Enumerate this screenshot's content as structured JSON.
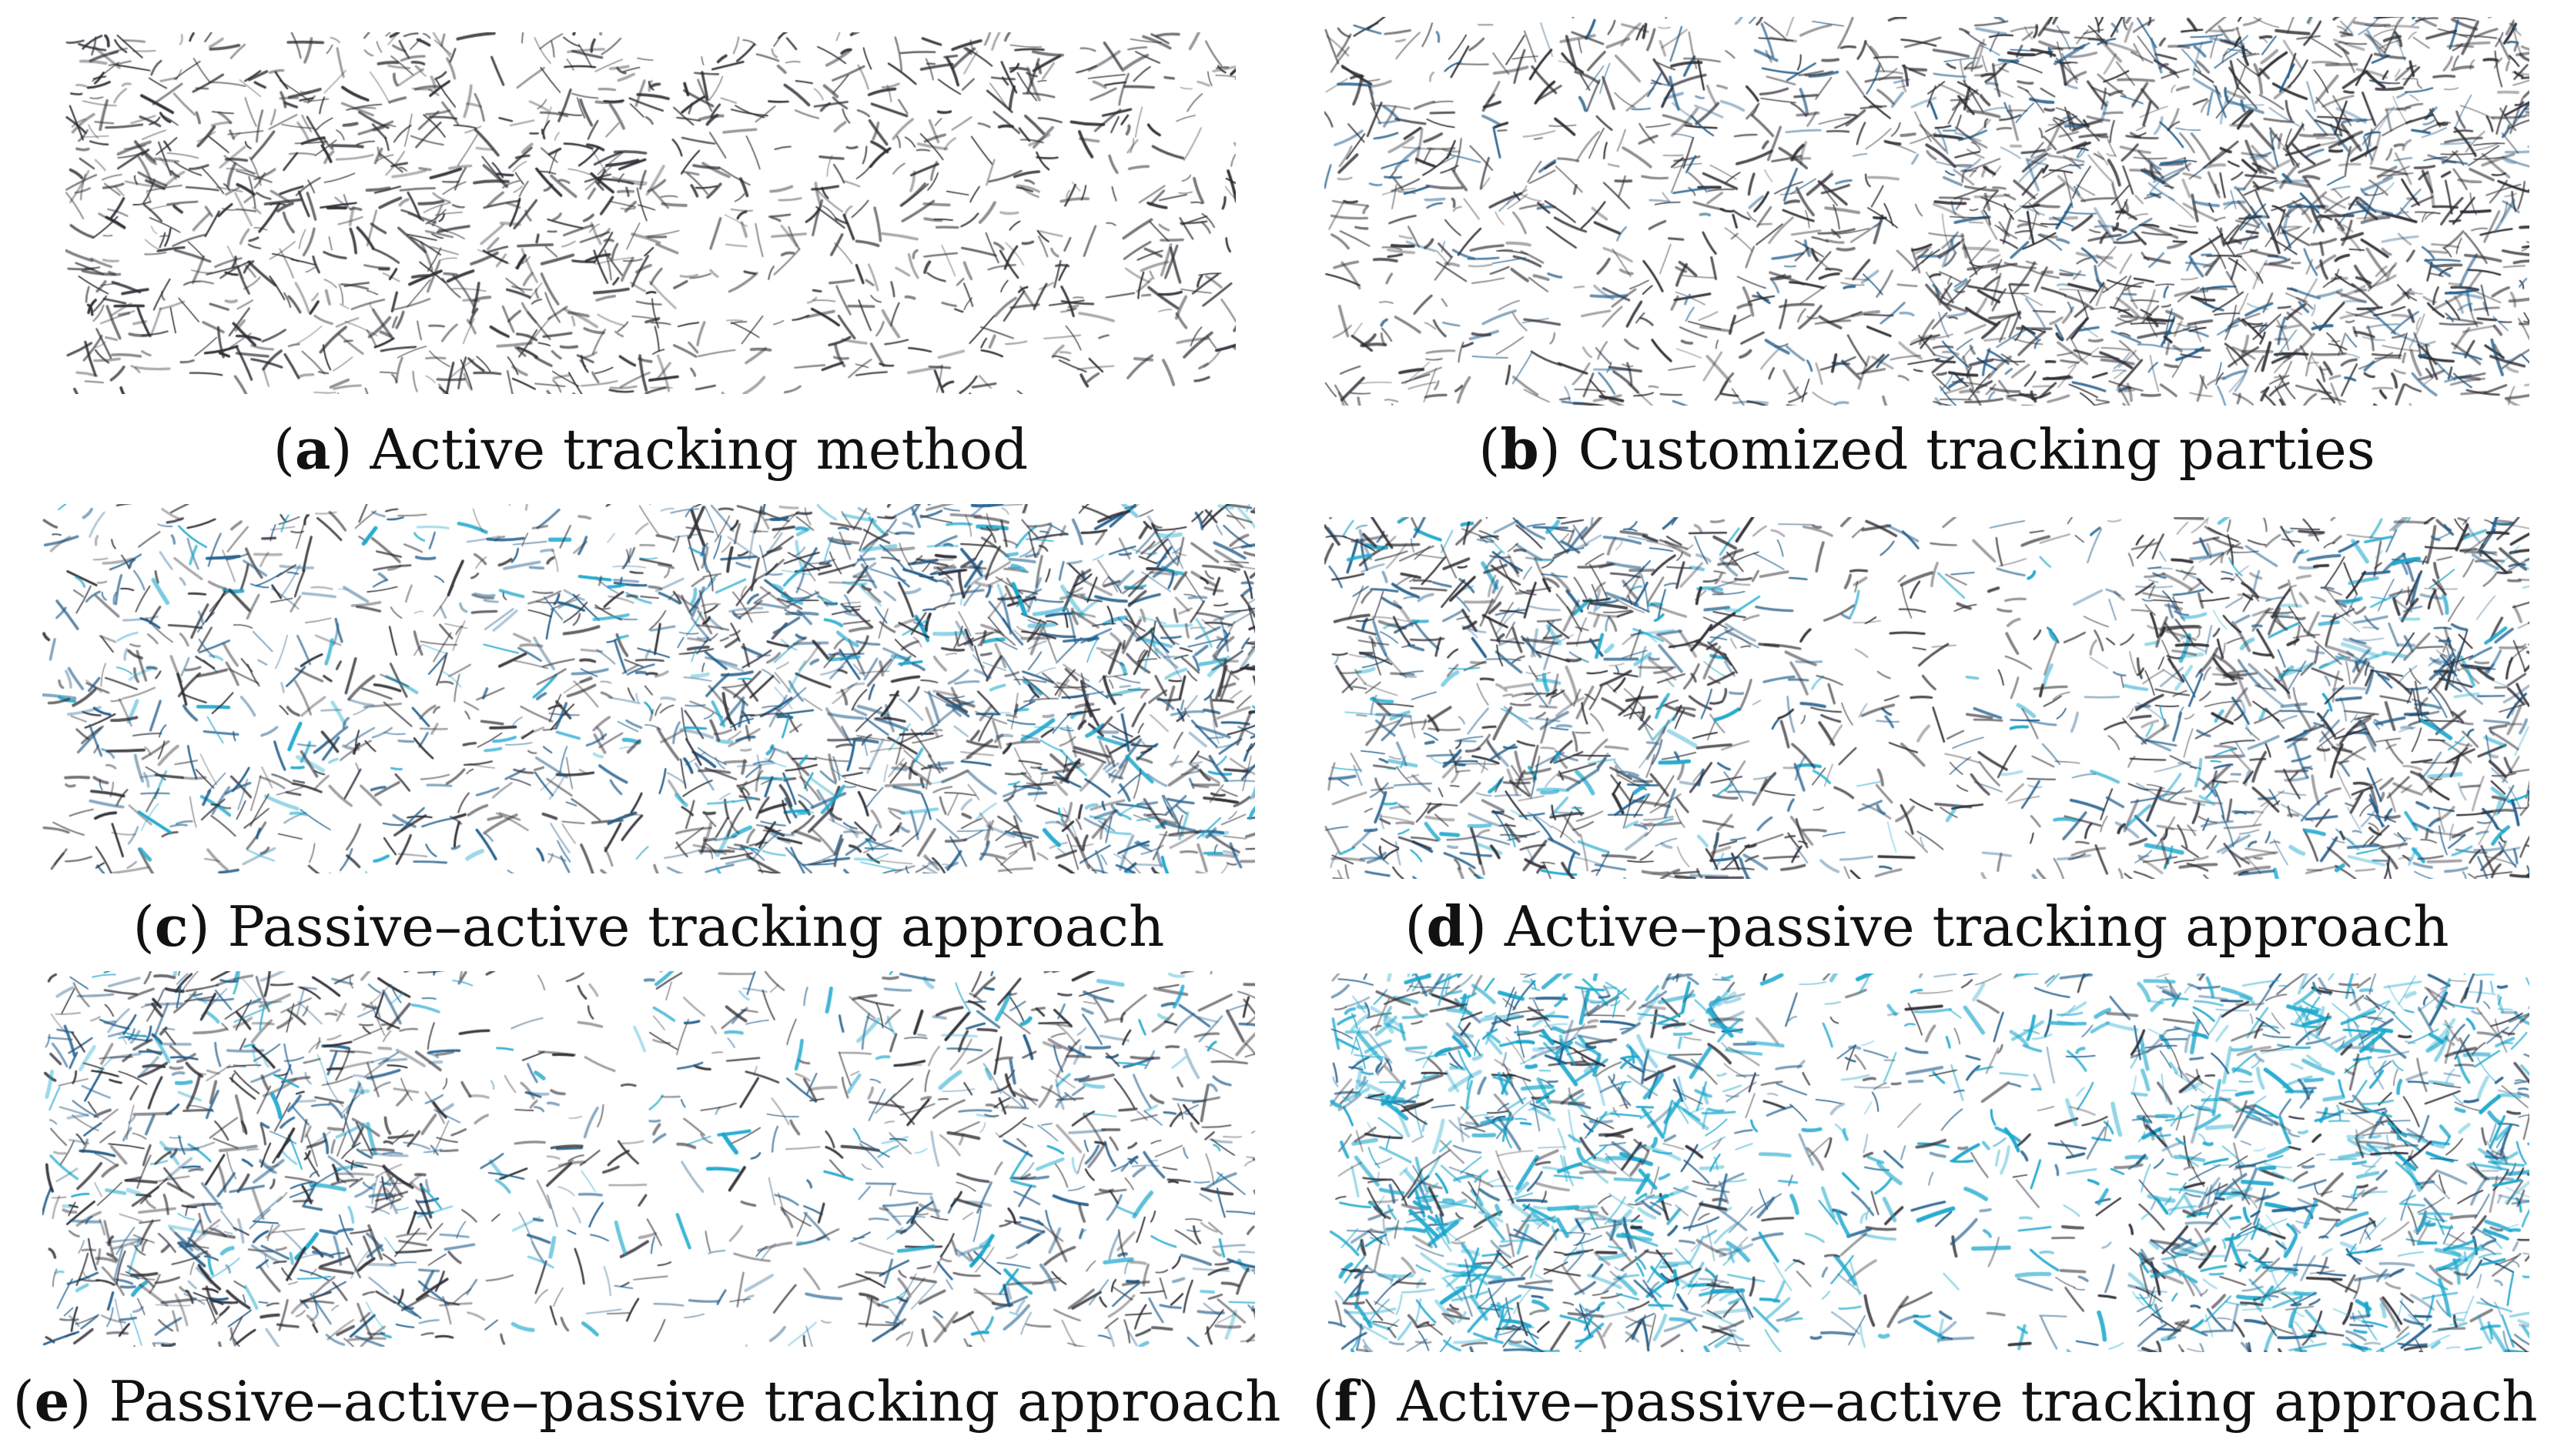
{
  "colors": {
    "fracture_dark": "#2b2b33",
    "fracture_blue": "#1f5c8a",
    "fracture_cyan": "#18a6cc",
    "text": "#111111"
  },
  "panels": [
    {
      "letter": "a",
      "caption": "Active tracking method",
      "density": [
        0.55,
        0.35
      ],
      "dark": 1.0,
      "blue": 0.0,
      "cyan": 0.0
    },
    {
      "letter": "b",
      "caption": "Customized tracking parties",
      "density": [
        0.5,
        1.0
      ],
      "dark": 0.8,
      "blue": 0.2,
      "cyan": 0.0
    },
    {
      "letter": "c",
      "caption": "Passive–active tracking approach",
      "density": [
        0.45,
        1.0
      ],
      "dark": 0.55,
      "blue": 0.35,
      "cyan": 0.1
    },
    {
      "letter": "d",
      "caption": "Active–passive tracking approach",
      "density": [
        0.8,
        0.35,
        0.9
      ],
      "dark": 0.6,
      "blue": 0.3,
      "cyan": 0.1
    },
    {
      "letter": "e",
      "caption": "Passive–active–passive tracking approach",
      "density": [
        0.8,
        0.3,
        0.55
      ],
      "dark": 0.55,
      "blue": 0.35,
      "cyan": 0.1
    },
    {
      "letter": "f",
      "caption": "Active–passive–active tracking approach",
      "density": [
        1.0,
        0.35,
        1.0
      ],
      "dark": 0.25,
      "blue": 0.3,
      "cyan": 0.45
    }
  ]
}
